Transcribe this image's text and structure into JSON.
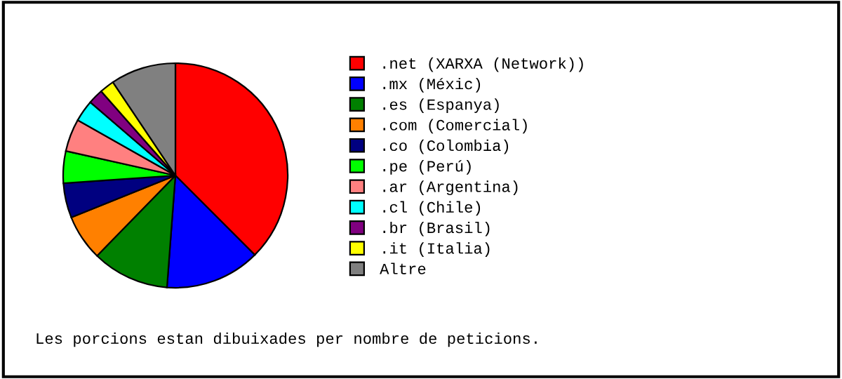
{
  "chart_data": {
    "type": "pie",
    "categories": [
      ".net (XARXA (Network))",
      ".mx (Méxic)",
      ".es (Espanya)",
      ".com (Comercial)",
      ".co (Colombia)",
      ".pe (Perú)",
      ".ar (Argentina)",
      ".cl (Chile)",
      ".br (Brasil)",
      ".it (Italia)",
      "Altre"
    ],
    "values": [
      37.5,
      13.7,
      11.1,
      6.6,
      5.0,
      4.6,
      4.7,
      3.1,
      2.2,
      2.1,
      9.4
    ],
    "colors": [
      "#ff0000",
      "#0000ff",
      "#008000",
      "#ff8000",
      "#000080",
      "#00ff00",
      "#ff8080",
      "#00ffff",
      "#800080",
      "#ffff00",
      "#808080"
    ],
    "legend": "right",
    "annotations": [
      "Les porcions estan dibuixades per nombre de peticions."
    ]
  }
}
